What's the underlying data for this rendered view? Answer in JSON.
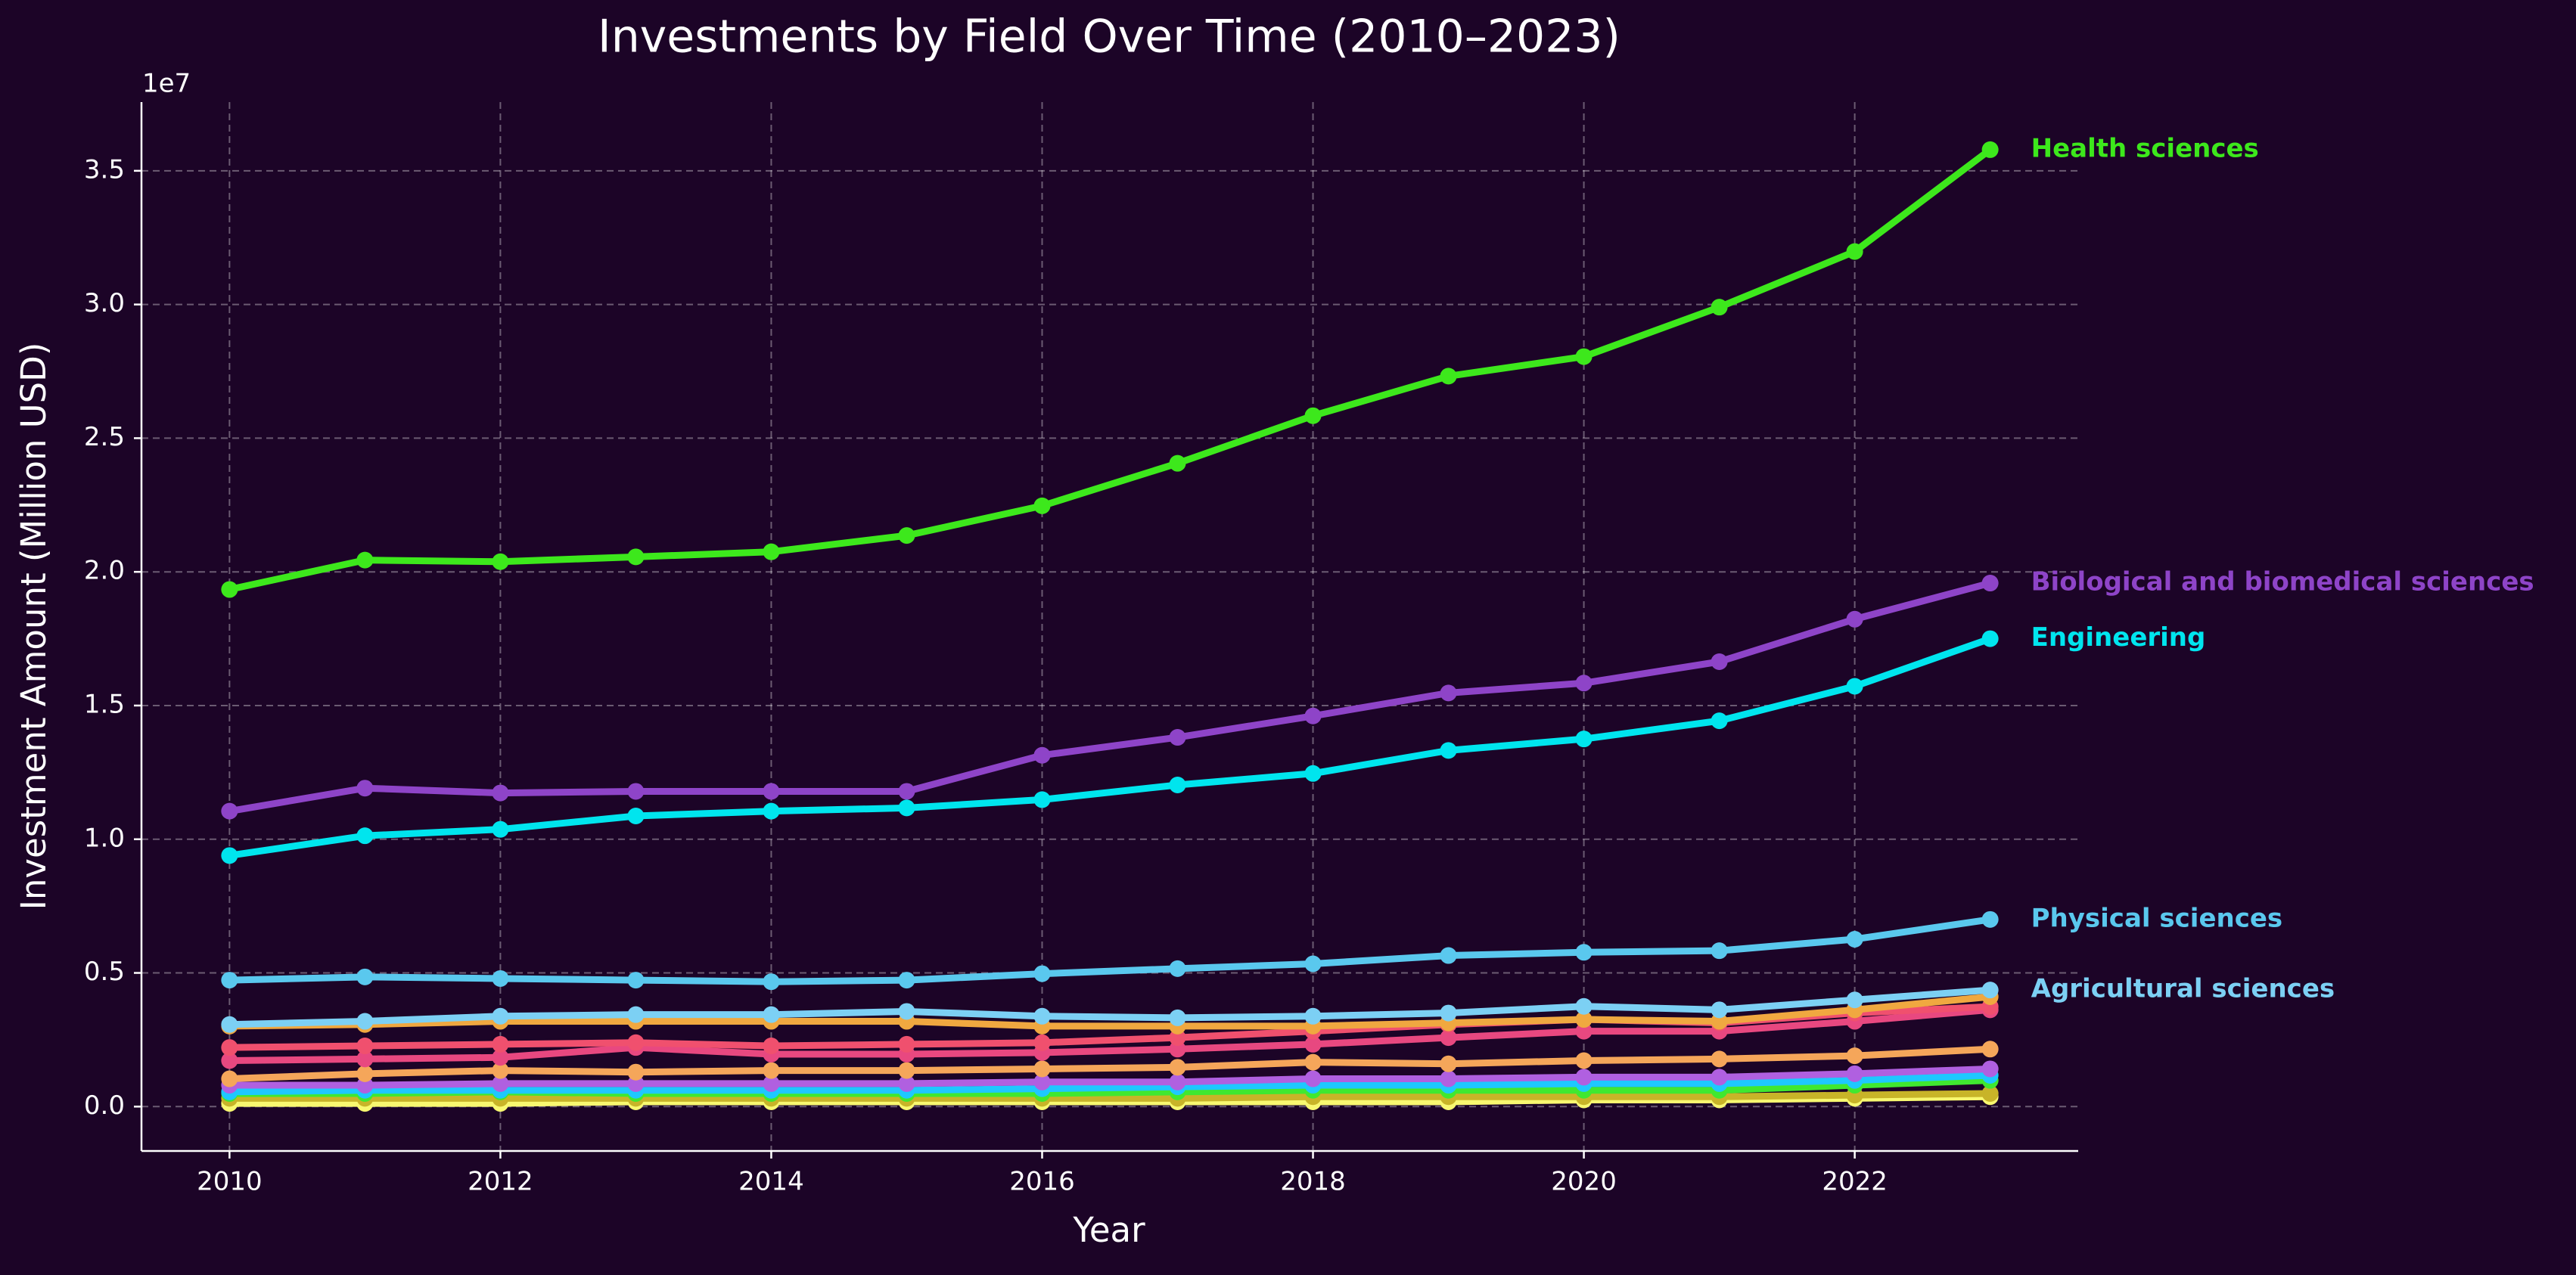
{
  "chart_data": {
    "type": "line",
    "title": "Investments by Field Over Time (2010–2023)",
    "x_label": "Year",
    "y_label": "Investment Amount (Million USD)",
    "y_offset_label": "1e7",
    "x": [
      2010,
      2011,
      2012,
      2013,
      2014,
      2015,
      2016,
      2017,
      2018,
      2019,
      2020,
      2021,
      2022,
      2023
    ],
    "xlim": [
      2009.35,
      2023.65
    ],
    "xticks": [
      2010,
      2012,
      2014,
      2016,
      2018,
      2020,
      2022
    ],
    "ylim": [
      -0.166,
      3.757
    ],
    "yticks": [
      {
        "value": 0,
        "label": "0.0"
      },
      0.5,
      {
        "value": 1,
        "label": "1.0"
      },
      1.5,
      {
        "value": 2,
        "label": "2.0"
      },
      2.5,
      {
        "value": 3,
        "label": "3.0"
      },
      3.5
    ],
    "grid": true,
    "series": [
      {
        "name": "Health sciences",
        "color": "#3de81c",
        "values": [
          1.934,
          2.044,
          2.038,
          2.056,
          2.075,
          2.136,
          2.247,
          2.406,
          2.584,
          2.732,
          2.805,
          2.99,
          3.198,
          3.579
        ]
      },
      {
        "name": "Biological and biomedical sciences",
        "color": "#8e44c8",
        "values": [
          1.105,
          1.191,
          1.173,
          1.179,
          1.179,
          1.179,
          1.314,
          1.381,
          1.461,
          1.547,
          1.584,
          1.664,
          1.823,
          1.958
        ]
      },
      {
        "name": "Engineering",
        "color": "#00e5ee",
        "values": [
          0.939,
          1.013,
          1.037,
          1.087,
          1.105,
          1.117,
          1.148,
          1.203,
          1.246,
          1.332,
          1.375,
          1.443,
          1.572,
          1.75
        ]
      },
      {
        "name": "Physical sciences",
        "color": "#5ac8ee",
        "values": [
          0.473,
          0.485,
          0.479,
          0.473,
          0.467,
          0.473,
          0.497,
          0.516,
          0.534,
          0.565,
          0.577,
          0.583,
          0.626,
          0.7
        ]
      },
      {
        "name": "Agricultural sciences",
        "color": "#7cd0f4",
        "values": [
          0.307,
          0.319,
          0.338,
          0.344,
          0.344,
          0.356,
          0.338,
          0.332,
          0.338,
          0.35,
          0.375,
          0.362,
          0.399,
          0.436
        ]
      },
      {
        "color": "#f0a840",
        "values": [
          0.301,
          0.307,
          0.319,
          0.319,
          0.319,
          0.319,
          0.301,
          0.301,
          0.301,
          0.313,
          0.326,
          0.319,
          0.362,
          0.411
        ]
      },
      {
        "color": "#f0506e",
        "values": [
          0.221,
          0.227,
          0.233,
          0.239,
          0.227,
          0.233,
          0.239,
          0.258,
          0.282,
          0.307,
          0.326,
          0.313,
          0.35,
          0.374
        ]
      },
      {
        "color": "#e84880",
        "values": [
          0.172,
          0.178,
          0.184,
          0.221,
          0.196,
          0.196,
          0.202,
          0.215,
          0.233,
          0.258,
          0.282,
          0.282,
          0.319,
          0.362
        ]
      },
      {
        "color": "#f5a65a",
        "values": [
          0.104,
          0.123,
          0.135,
          0.129,
          0.135,
          0.135,
          0.141,
          0.147,
          0.166,
          0.16,
          0.172,
          0.178,
          0.19,
          0.215
        ]
      },
      {
        "color": "#b060e0",
        "values": [
          0.08,
          0.08,
          0.086,
          0.086,
          0.086,
          0.086,
          0.092,
          0.092,
          0.104,
          0.104,
          0.11,
          0.11,
          0.123,
          0.141
        ]
      },
      {
        "color": "#1ec8ff",
        "values": [
          0.055,
          0.061,
          0.061,
          0.061,
          0.061,
          0.061,
          0.067,
          0.074,
          0.08,
          0.08,
          0.086,
          0.086,
          0.098,
          0.117
        ]
      },
      {
        "color": "#40e830",
        "values": [
          0.049,
          0.049,
          0.055,
          0.049,
          0.049,
          0.049,
          0.049,
          0.055,
          0.061,
          0.061,
          0.061,
          0.061,
          0.08,
          0.098
        ]
      },
      {
        "color": "#c8b428",
        "values": [
          0.031,
          0.031,
          0.031,
          0.031,
          0.031,
          0.031,
          0.031,
          0.031,
          0.037,
          0.037,
          0.037,
          0.037,
          0.043,
          0.049
        ]
      },
      {
        "color": "#f8f870",
        "values": [
          0.012,
          0.012,
          0.012,
          0.018,
          0.018,
          0.018,
          0.018,
          0.018,
          0.018,
          0.018,
          0.025,
          0.025,
          0.031,
          0.037
        ]
      }
    ]
  }
}
